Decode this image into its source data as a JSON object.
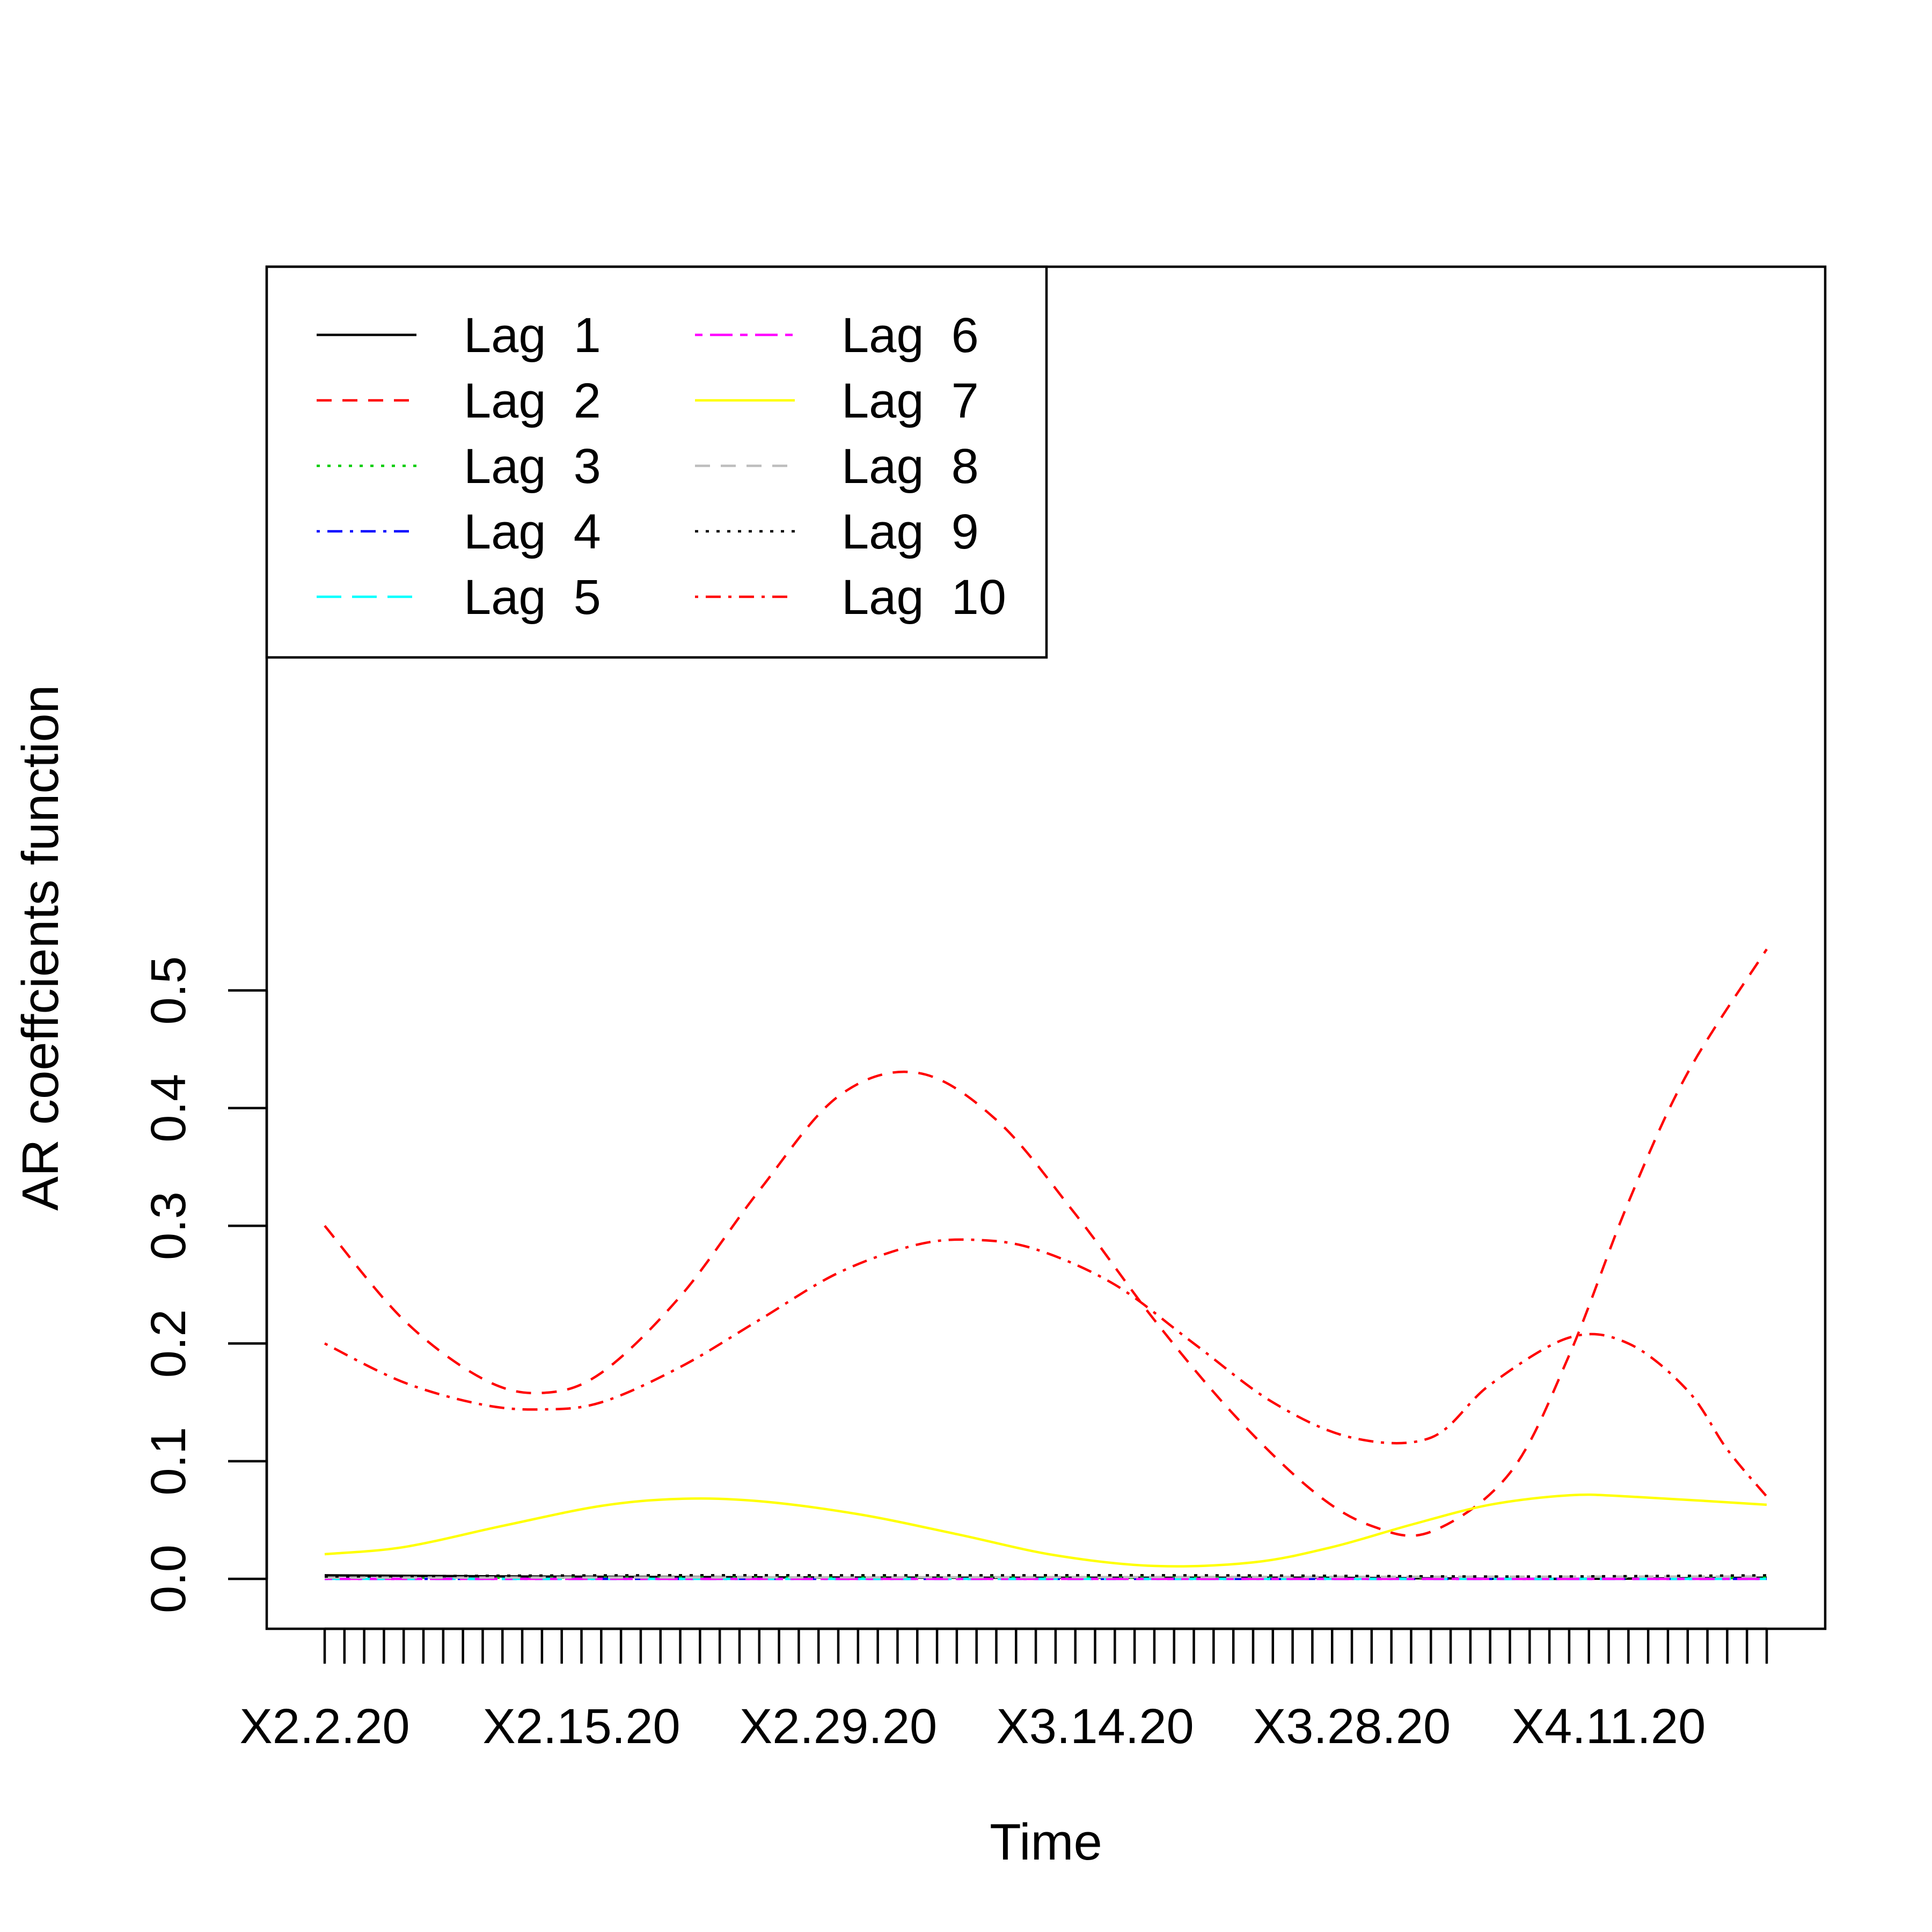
{
  "chart_data": {
    "type": "line",
    "title": "",
    "xlabel": "Time",
    "ylabel": "AR coeffcients function",
    "x_tick_labels": [
      "X2.2.20",
      "X2.15.20",
      "X2.29.20",
      "X3.14.20",
      "X3.28.20",
      "X4.11.20"
    ],
    "n_points": 74,
    "ylim": [
      -0.025,
      0.555
    ],
    "y_ticks": [
      0.0,
      0.1,
      0.2,
      0.3,
      0.4,
      0.5
    ],
    "y_tick_labels": [
      "0.0",
      "0.1",
      "0.2",
      "0.3",
      "0.4",
      "0.5"
    ],
    "grid": false,
    "legend_position": "top-left",
    "legend_columns": 2,
    "series": [
      {
        "name": "Lag  1",
        "color": "#000000",
        "dash": "solid",
        "points": [
          [
            0,
            0.003
          ],
          [
            10,
            0.002
          ],
          [
            30,
            0.001
          ],
          [
            50,
            0.001
          ],
          [
            62,
            0.0
          ],
          [
            73,
            0.001
          ]
        ]
      },
      {
        "name": "Lag  2",
        "color": "#FF0000",
        "dash": "dashed",
        "points": [
          [
            0,
            0.3
          ],
          [
            4,
            0.22
          ],
          [
            8,
            0.17
          ],
          [
            11,
            0.158
          ],
          [
            14,
            0.175
          ],
          [
            18,
            0.24
          ],
          [
            22,
            0.33
          ],
          [
            26,
            0.41
          ],
          [
            30,
            0.43
          ],
          [
            34,
            0.39
          ],
          [
            38,
            0.31
          ],
          [
            42,
            0.22
          ],
          [
            46,
            0.14
          ],
          [
            50,
            0.075
          ],
          [
            53,
            0.045
          ],
          [
            56,
            0.04
          ],
          [
            60,
            0.09
          ],
          [
            63,
            0.19
          ],
          [
            66,
            0.32
          ],
          [
            69,
            0.43
          ],
          [
            73,
            0.535
          ]
        ]
      },
      {
        "name": "Lag  3",
        "color": "#00CD00",
        "dash": "dotted",
        "points": [
          [
            0,
            0.001
          ],
          [
            73,
            0.001
          ]
        ]
      },
      {
        "name": "Lag  4",
        "color": "#0000FF",
        "dash": "dotdash",
        "points": [
          [
            0,
            0.0
          ],
          [
            73,
            0.0
          ]
        ]
      },
      {
        "name": "Lag  5",
        "color": "#00FFFF",
        "dash": "longdash",
        "points": [
          [
            0,
            0.0
          ],
          [
            73,
            0.0
          ]
        ]
      },
      {
        "name": "Lag  6",
        "color": "#FF00FF",
        "dash": "twodash",
        "points": [
          [
            0,
            0.0
          ],
          [
            73,
            0.0
          ]
        ]
      },
      {
        "name": "Lag  7",
        "color": "#FFFF00",
        "dash": "solid",
        "points": [
          [
            0,
            0.021
          ],
          [
            4,
            0.027
          ],
          [
            9,
            0.045
          ],
          [
            14,
            0.062
          ],
          [
            18,
            0.068
          ],
          [
            22,
            0.066
          ],
          [
            27,
            0.055
          ],
          [
            32,
            0.038
          ],
          [
            37,
            0.02
          ],
          [
            42,
            0.011
          ],
          [
            47,
            0.014
          ],
          [
            51,
            0.027
          ],
          [
            55,
            0.046
          ],
          [
            59,
            0.063
          ],
          [
            63,
            0.071
          ],
          [
            66,
            0.07
          ],
          [
            73,
            0.063
          ]
        ]
      },
      {
        "name": "Lag  8",
        "color": "#BEBEBE",
        "dash": "dashed",
        "points": [
          [
            0,
            0.001
          ],
          [
            73,
            0.002
          ]
        ]
      },
      {
        "name": "Lag  9",
        "color": "#000000",
        "dash": "dotted",
        "points": [
          [
            0,
            0.002
          ],
          [
            15,
            0.003
          ],
          [
            30,
            0.003
          ],
          [
            45,
            0.003
          ],
          [
            60,
            0.002
          ],
          [
            73,
            0.003
          ]
        ]
      },
      {
        "name": "Lag  10",
        "color": "#FF0000",
        "dash": "dotdash",
        "points": [
          [
            0,
            0.2
          ],
          [
            4,
            0.167
          ],
          [
            8,
            0.148
          ],
          [
            11,
            0.144
          ],
          [
            14,
            0.15
          ],
          [
            18,
            0.18
          ],
          [
            22,
            0.22
          ],
          [
            26,
            0.26
          ],
          [
            30,
            0.284
          ],
          [
            33,
            0.288
          ],
          [
            36,
            0.28
          ],
          [
            40,
            0.25
          ],
          [
            44,
            0.2
          ],
          [
            48,
            0.15
          ],
          [
            52,
            0.12
          ],
          [
            56,
            0.12
          ],
          [
            59,
            0.165
          ],
          [
            63,
            0.205
          ],
          [
            66,
            0.2
          ],
          [
            69,
            0.16
          ],
          [
            71,
            0.11
          ],
          [
            73,
            0.07
          ]
        ]
      }
    ]
  }
}
